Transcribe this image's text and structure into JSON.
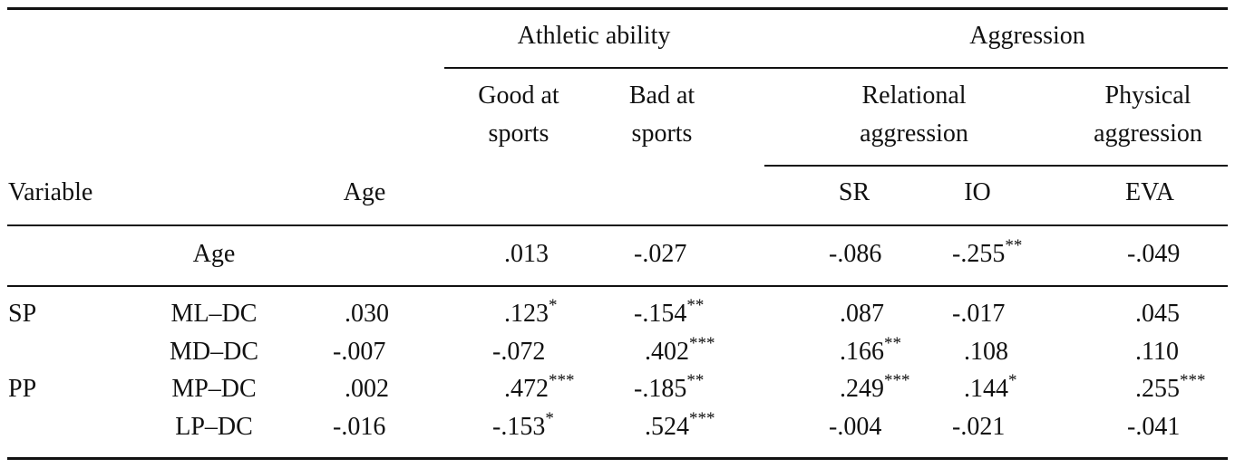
{
  "header": {
    "athletic_group": "Athletic ability",
    "aggression_group": "Aggression",
    "good_line1": "Good at",
    "good_line2": "sports",
    "bad_line1": "Bad at",
    "bad_line2": "sports",
    "relational_line1": "Relational",
    "relational_line2": "aggression",
    "physical_line1": "Physical",
    "physical_line2": "aggression",
    "variable": "Variable",
    "age": "Age",
    "sr": "SR",
    "io": "IO",
    "eva": "EVA"
  },
  "rows": [
    {
      "group": "",
      "label": "Age",
      "age": {
        "v": "",
        "s": ""
      },
      "good": {
        "v": ".013",
        "s": ""
      },
      "bad": {
        "v": "-.027",
        "s": ""
      },
      "sr": {
        "v": "-.086",
        "s": ""
      },
      "io": {
        "v": "-.255",
        "s": "**"
      },
      "eva": {
        "v": "-.049",
        "s": ""
      }
    },
    {
      "group": "SP",
      "label": "ML–DC",
      "age": {
        "v": ".030",
        "s": ""
      },
      "good": {
        "v": ".123",
        "s": "*"
      },
      "bad": {
        "v": "-.154",
        "s": "**"
      },
      "sr": {
        "v": ".087",
        "s": ""
      },
      "io": {
        "v": "-.017",
        "s": ""
      },
      "eva": {
        "v": ".045",
        "s": ""
      }
    },
    {
      "group": "",
      "label": "MD–DC",
      "age": {
        "v": "-.007",
        "s": ""
      },
      "good": {
        "v": "-.072",
        "s": ""
      },
      "bad": {
        "v": ".402",
        "s": "***"
      },
      "sr": {
        "v": ".166",
        "s": "**"
      },
      "io": {
        "v": ".108",
        "s": ""
      },
      "eva": {
        "v": ".110",
        "s": ""
      }
    },
    {
      "group": "PP",
      "label": "MP–DC",
      "age": {
        "v": ".002",
        "s": ""
      },
      "good": {
        "v": ".472",
        "s": "***"
      },
      "bad": {
        "v": "-.185",
        "s": "**"
      },
      "sr": {
        "v": ".249",
        "s": "***"
      },
      "io": {
        "v": ".144",
        "s": "*"
      },
      "eva": {
        "v": ".255",
        "s": "***"
      }
    },
    {
      "group": "",
      "label": "LP–DC",
      "age": {
        "v": "-.016",
        "s": ""
      },
      "good": {
        "v": "-.153",
        "s": "*"
      },
      "bad": {
        "v": ".524",
        "s": "***"
      },
      "sr": {
        "v": "-.004",
        "s": ""
      },
      "io": {
        "v": "-.021",
        "s": ""
      },
      "eva": {
        "v": "-.041",
        "s": ""
      }
    }
  ]
}
